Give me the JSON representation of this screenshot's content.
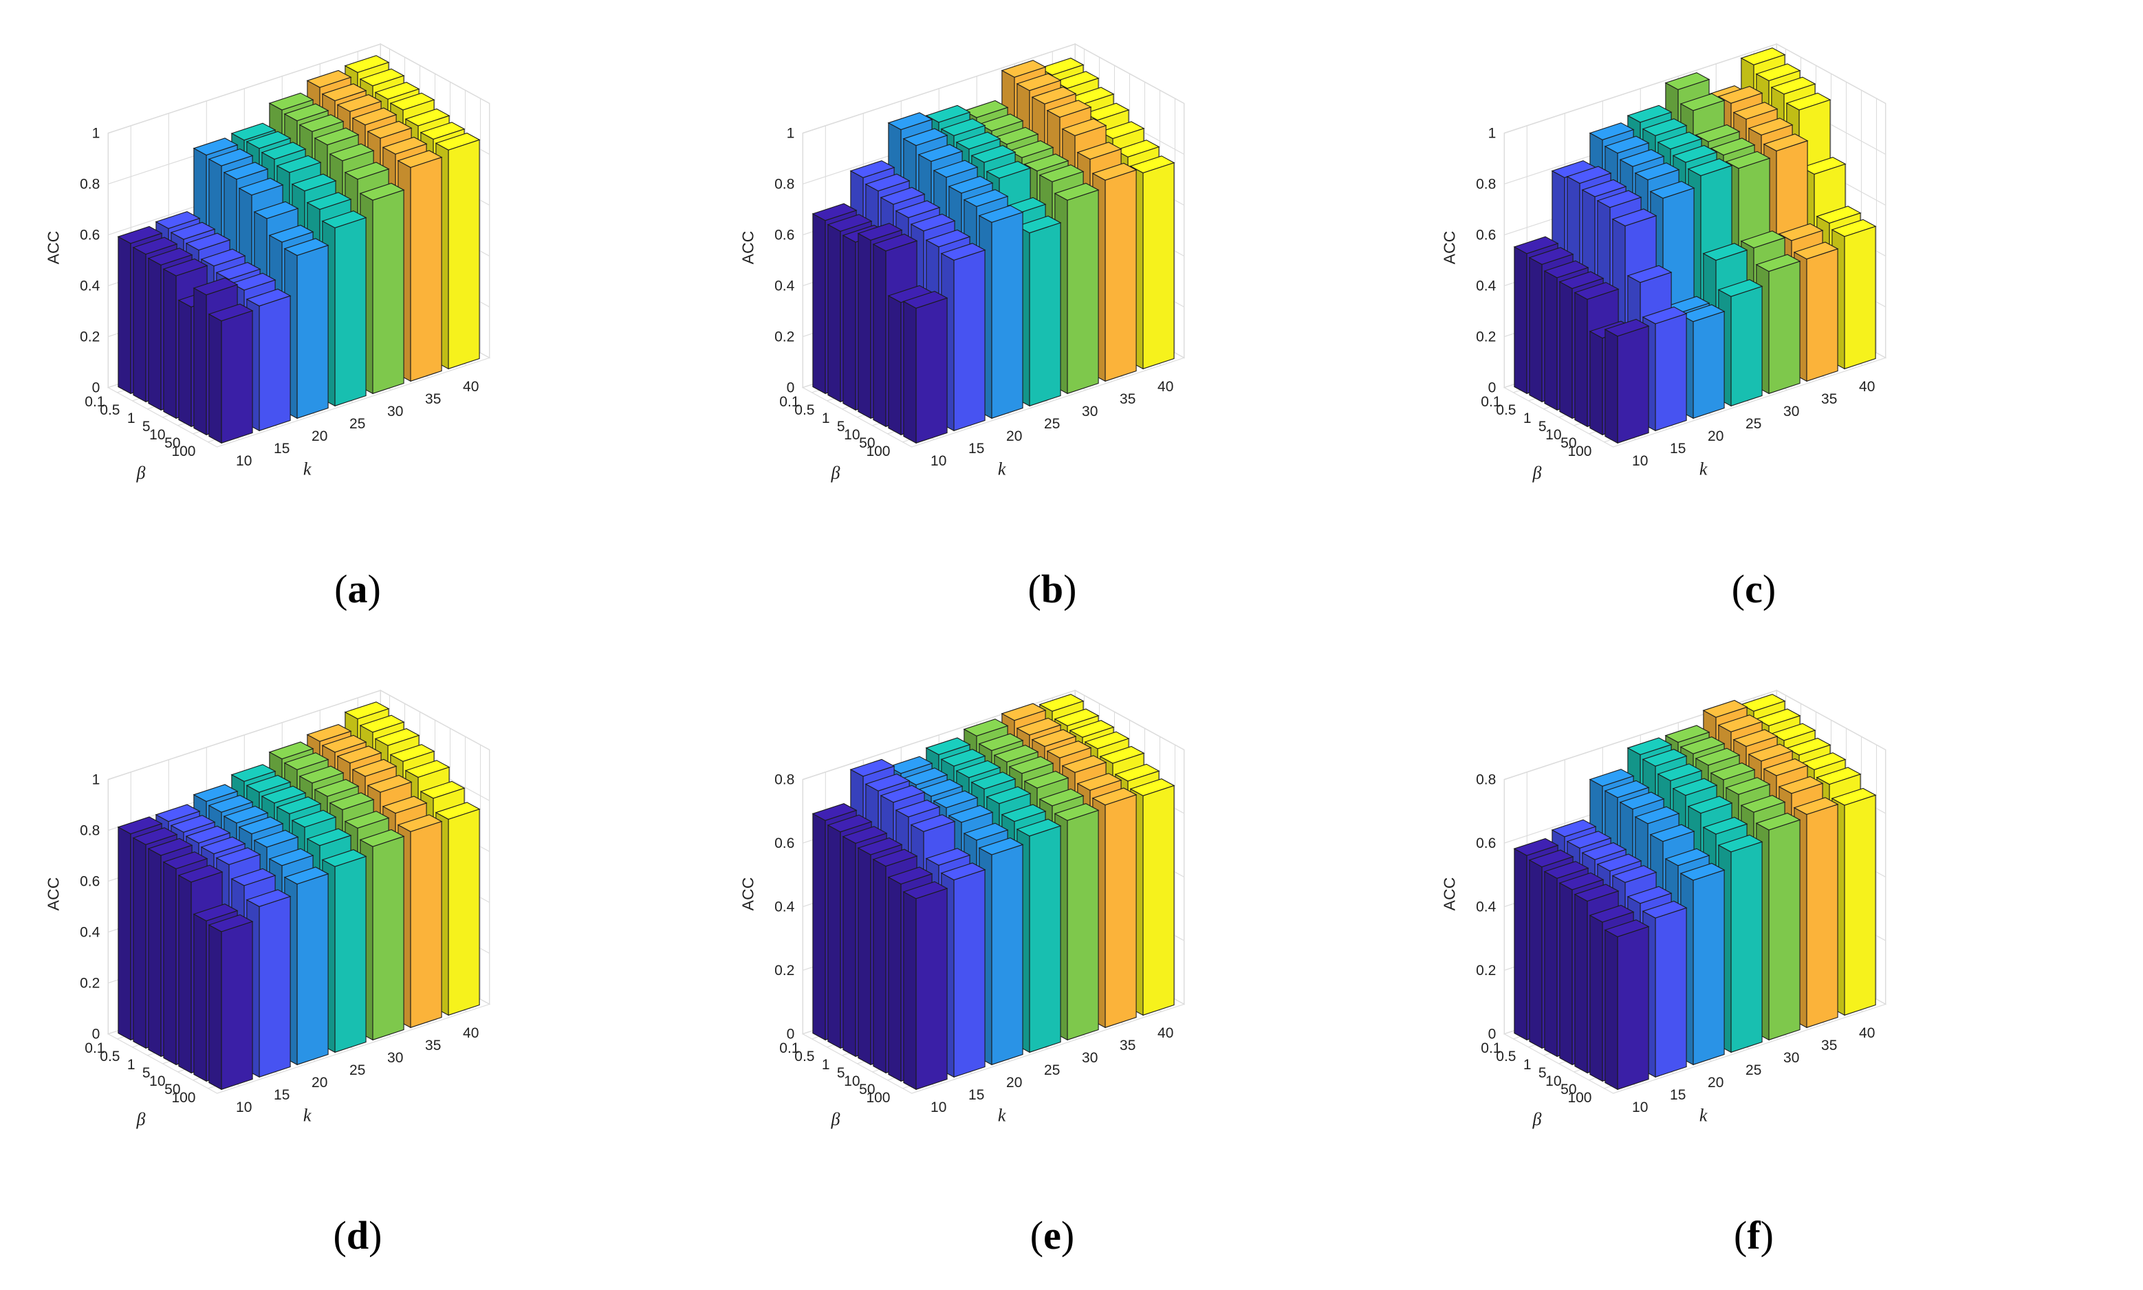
{
  "colors": {
    "series": [
      "#3a1fa6",
      "#4753f1",
      "#2a93e6",
      "#18bfb0",
      "#7ec84c",
      "#fbb33a",
      "#f6f21c"
    ],
    "bar_edge": "#1b1b1b",
    "grid": "#dcdcdc"
  },
  "chart_data": [
    {
      "type": "bar3d",
      "panel_label": "a",
      "zlabel": "ACC",
      "xlabel": "β",
      "ylabel": "k",
      "beta_ticks": [
        "0.1",
        "0.5",
        "1",
        "5",
        "10",
        "50",
        "100"
      ],
      "k_ticks": [
        "10",
        "15",
        "20",
        "25",
        "30",
        "35",
        "40"
      ],
      "zlim": [
        0,
        1
      ],
      "z_ticks": [
        "0",
        "0.2",
        "0.4",
        "0.6",
        "0.8",
        "1"
      ],
      "values": [
        [
          0.59,
          0.6,
          0.84,
          0.85,
          0.92,
          0.96,
          0.97
        ],
        [
          0.58,
          0.59,
          0.83,
          0.85,
          0.91,
          0.94,
          0.95
        ],
        [
          0.57,
          0.58,
          0.81,
          0.84,
          0.9,
          0.93,
          0.93
        ],
        [
          0.56,
          0.55,
          0.78,
          0.82,
          0.88,
          0.91,
          0.92
        ],
        [
          0.47,
          0.53,
          0.72,
          0.78,
          0.85,
          0.89,
          0.89
        ],
        [
          0.55,
          0.52,
          0.66,
          0.74,
          0.81,
          0.86,
          0.87
        ],
        [
          0.48,
          0.49,
          0.64,
          0.7,
          0.76,
          0.84,
          0.86
        ]
      ]
    },
    {
      "type": "bar3d",
      "panel_label": "b",
      "zlabel": "ACC",
      "xlabel": "β",
      "ylabel": "k",
      "beta_ticks": [
        "0.1",
        "0.5",
        "1",
        "5",
        "10",
        "50",
        "100"
      ],
      "k_ticks": [
        "10",
        "15",
        "20",
        "25",
        "30",
        "35",
        "40"
      ],
      "zlim": [
        0,
        1
      ],
      "z_ticks": [
        "0",
        "0.2",
        "0.4",
        "0.6",
        "0.8",
        "1"
      ],
      "values": [
        [
          0.68,
          0.8,
          0.94,
          0.92,
          0.89,
          1.0,
          0.96
        ],
        [
          0.67,
          0.78,
          0.91,
          0.9,
          0.87,
          0.98,
          0.94
        ],
        [
          0.66,
          0.76,
          0.88,
          0.88,
          0.85,
          0.96,
          0.91
        ],
        [
          0.7,
          0.74,
          0.85,
          0.86,
          0.83,
          0.94,
          0.88
        ],
        [
          0.69,
          0.72,
          0.82,
          0.83,
          0.81,
          0.9,
          0.84
        ],
        [
          0.52,
          0.69,
          0.8,
          0.72,
          0.8,
          0.84,
          0.8
        ],
        [
          0.53,
          0.67,
          0.77,
          0.68,
          0.76,
          0.79,
          0.77
        ]
      ]
    },
    {
      "type": "bar3d",
      "panel_label": "c",
      "zlabel": "ACC",
      "xlabel": "β",
      "ylabel": "k",
      "beta_ticks": [
        "0.1",
        "0.5",
        "1",
        "5",
        "10",
        "50",
        "100"
      ],
      "k_ticks": [
        "10",
        "15",
        "20",
        "25",
        "30",
        "35",
        "40"
      ],
      "zlim": [
        0,
        1
      ],
      "z_ticks": [
        "0",
        "0.2",
        "0.4",
        "0.6",
        "0.8",
        "1"
      ],
      "values": [
        [
          0.55,
          0.8,
          0.9,
          0.92,
          1.0,
          0.9,
          1.0
        ],
        [
          0.54,
          0.81,
          0.88,
          0.9,
          0.95,
          0.93,
          0.97
        ],
        [
          0.52,
          0.79,
          0.86,
          0.88,
          0.86,
          0.9,
          0.95
        ],
        [
          0.51,
          0.78,
          0.84,
          0.86,
          0.84,
          0.87,
          0.92
        ],
        [
          0.5,
          0.74,
          0.8,
          0.84,
          0.82,
          0.84,
          0.7
        ],
        [
          0.38,
          0.55,
          0.38,
          0.54,
          0.54,
          0.52,
          0.54
        ],
        [
          0.42,
          0.42,
          0.38,
          0.43,
          0.48,
          0.48,
          0.52
        ]
      ]
    },
    {
      "type": "bar3d",
      "panel_label": "d",
      "zlabel": "ACC",
      "xlabel": "β",
      "ylabel": "k",
      "beta_ticks": [
        "0.1",
        "0.5",
        "1",
        "5",
        "10",
        "50",
        "100"
      ],
      "k_ticks": [
        "10",
        "15",
        "20",
        "25",
        "30",
        "35",
        "40"
      ],
      "zlim": [
        0,
        1
      ],
      "z_ticks": [
        "0",
        "0.2",
        "0.4",
        "0.6",
        "0.8",
        "1"
      ],
      "values": [
        [
          0.81,
          0.81,
          0.84,
          0.87,
          0.91,
          0.93,
          0.97
        ],
        [
          0.8,
          0.8,
          0.83,
          0.86,
          0.9,
          0.92,
          0.95
        ],
        [
          0.79,
          0.79,
          0.82,
          0.85,
          0.88,
          0.91,
          0.93
        ],
        [
          0.77,
          0.78,
          0.81,
          0.84,
          0.86,
          0.89,
          0.9
        ],
        [
          0.75,
          0.77,
          0.79,
          0.82,
          0.84,
          0.86,
          0.87
        ],
        [
          0.63,
          0.72,
          0.75,
          0.78,
          0.8,
          0.81,
          0.82
        ],
        [
          0.62,
          0.67,
          0.71,
          0.73,
          0.76,
          0.77,
          0.77
        ]
      ]
    },
    {
      "type": "bar3d",
      "panel_label": "e",
      "zlabel": "ACC",
      "xlabel": "β",
      "ylabel": "k",
      "beta_ticks": [
        "0.1",
        "0.5",
        "1",
        "5",
        "10",
        "50",
        "100"
      ],
      "k_ticks": [
        "10",
        "15",
        "20",
        "25",
        "30",
        "35",
        "40"
      ],
      "zlim": [
        0,
        0.8
      ],
      "z_ticks": [
        "0",
        "0.2",
        "0.4",
        "0.6",
        "0.8"
      ],
      "values": [
        [
          0.69,
          0.79,
          0.76,
          0.78,
          0.8,
          0.81,
          0.8
        ],
        [
          0.68,
          0.77,
          0.75,
          0.77,
          0.78,
          0.79,
          0.78
        ],
        [
          0.67,
          0.76,
          0.74,
          0.76,
          0.77,
          0.78,
          0.77
        ],
        [
          0.66,
          0.74,
          0.73,
          0.75,
          0.76,
          0.77,
          0.76
        ],
        [
          0.65,
          0.72,
          0.71,
          0.73,
          0.74,
          0.75,
          0.74
        ],
        [
          0.62,
          0.64,
          0.68,
          0.7,
          0.71,
          0.72,
          0.71
        ],
        [
          0.6,
          0.62,
          0.66,
          0.68,
          0.69,
          0.7,
          0.69
        ]
      ]
    },
    {
      "type": "bar3d",
      "panel_label": "f",
      "zlabel": "ACC",
      "xlabel": "β",
      "ylabel": "k",
      "beta_ticks": [
        "0.1",
        "0.5",
        "1",
        "5",
        "10",
        "50",
        "100"
      ],
      "k_ticks": [
        "10",
        "15",
        "20",
        "25",
        "30",
        "35",
        "40"
      ],
      "zlim": [
        0,
        0.8
      ],
      "z_ticks": [
        "0",
        "0.2",
        "0.4",
        "0.6",
        "0.8"
      ],
      "values": [
        [
          0.58,
          0.6,
          0.72,
          0.78,
          0.78,
          0.82,
          0.8
        ],
        [
          0.57,
          0.59,
          0.71,
          0.77,
          0.77,
          0.8,
          0.78
        ],
        [
          0.56,
          0.58,
          0.7,
          0.75,
          0.76,
          0.78,
          0.76
        ],
        [
          0.55,
          0.57,
          0.68,
          0.73,
          0.74,
          0.76,
          0.74
        ],
        [
          0.54,
          0.56,
          0.65,
          0.7,
          0.72,
          0.74,
          0.72
        ],
        [
          0.5,
          0.52,
          0.6,
          0.66,
          0.69,
          0.71,
          0.7
        ],
        [
          0.48,
          0.5,
          0.58,
          0.63,
          0.66,
          0.67,
          0.66
        ]
      ]
    }
  ]
}
